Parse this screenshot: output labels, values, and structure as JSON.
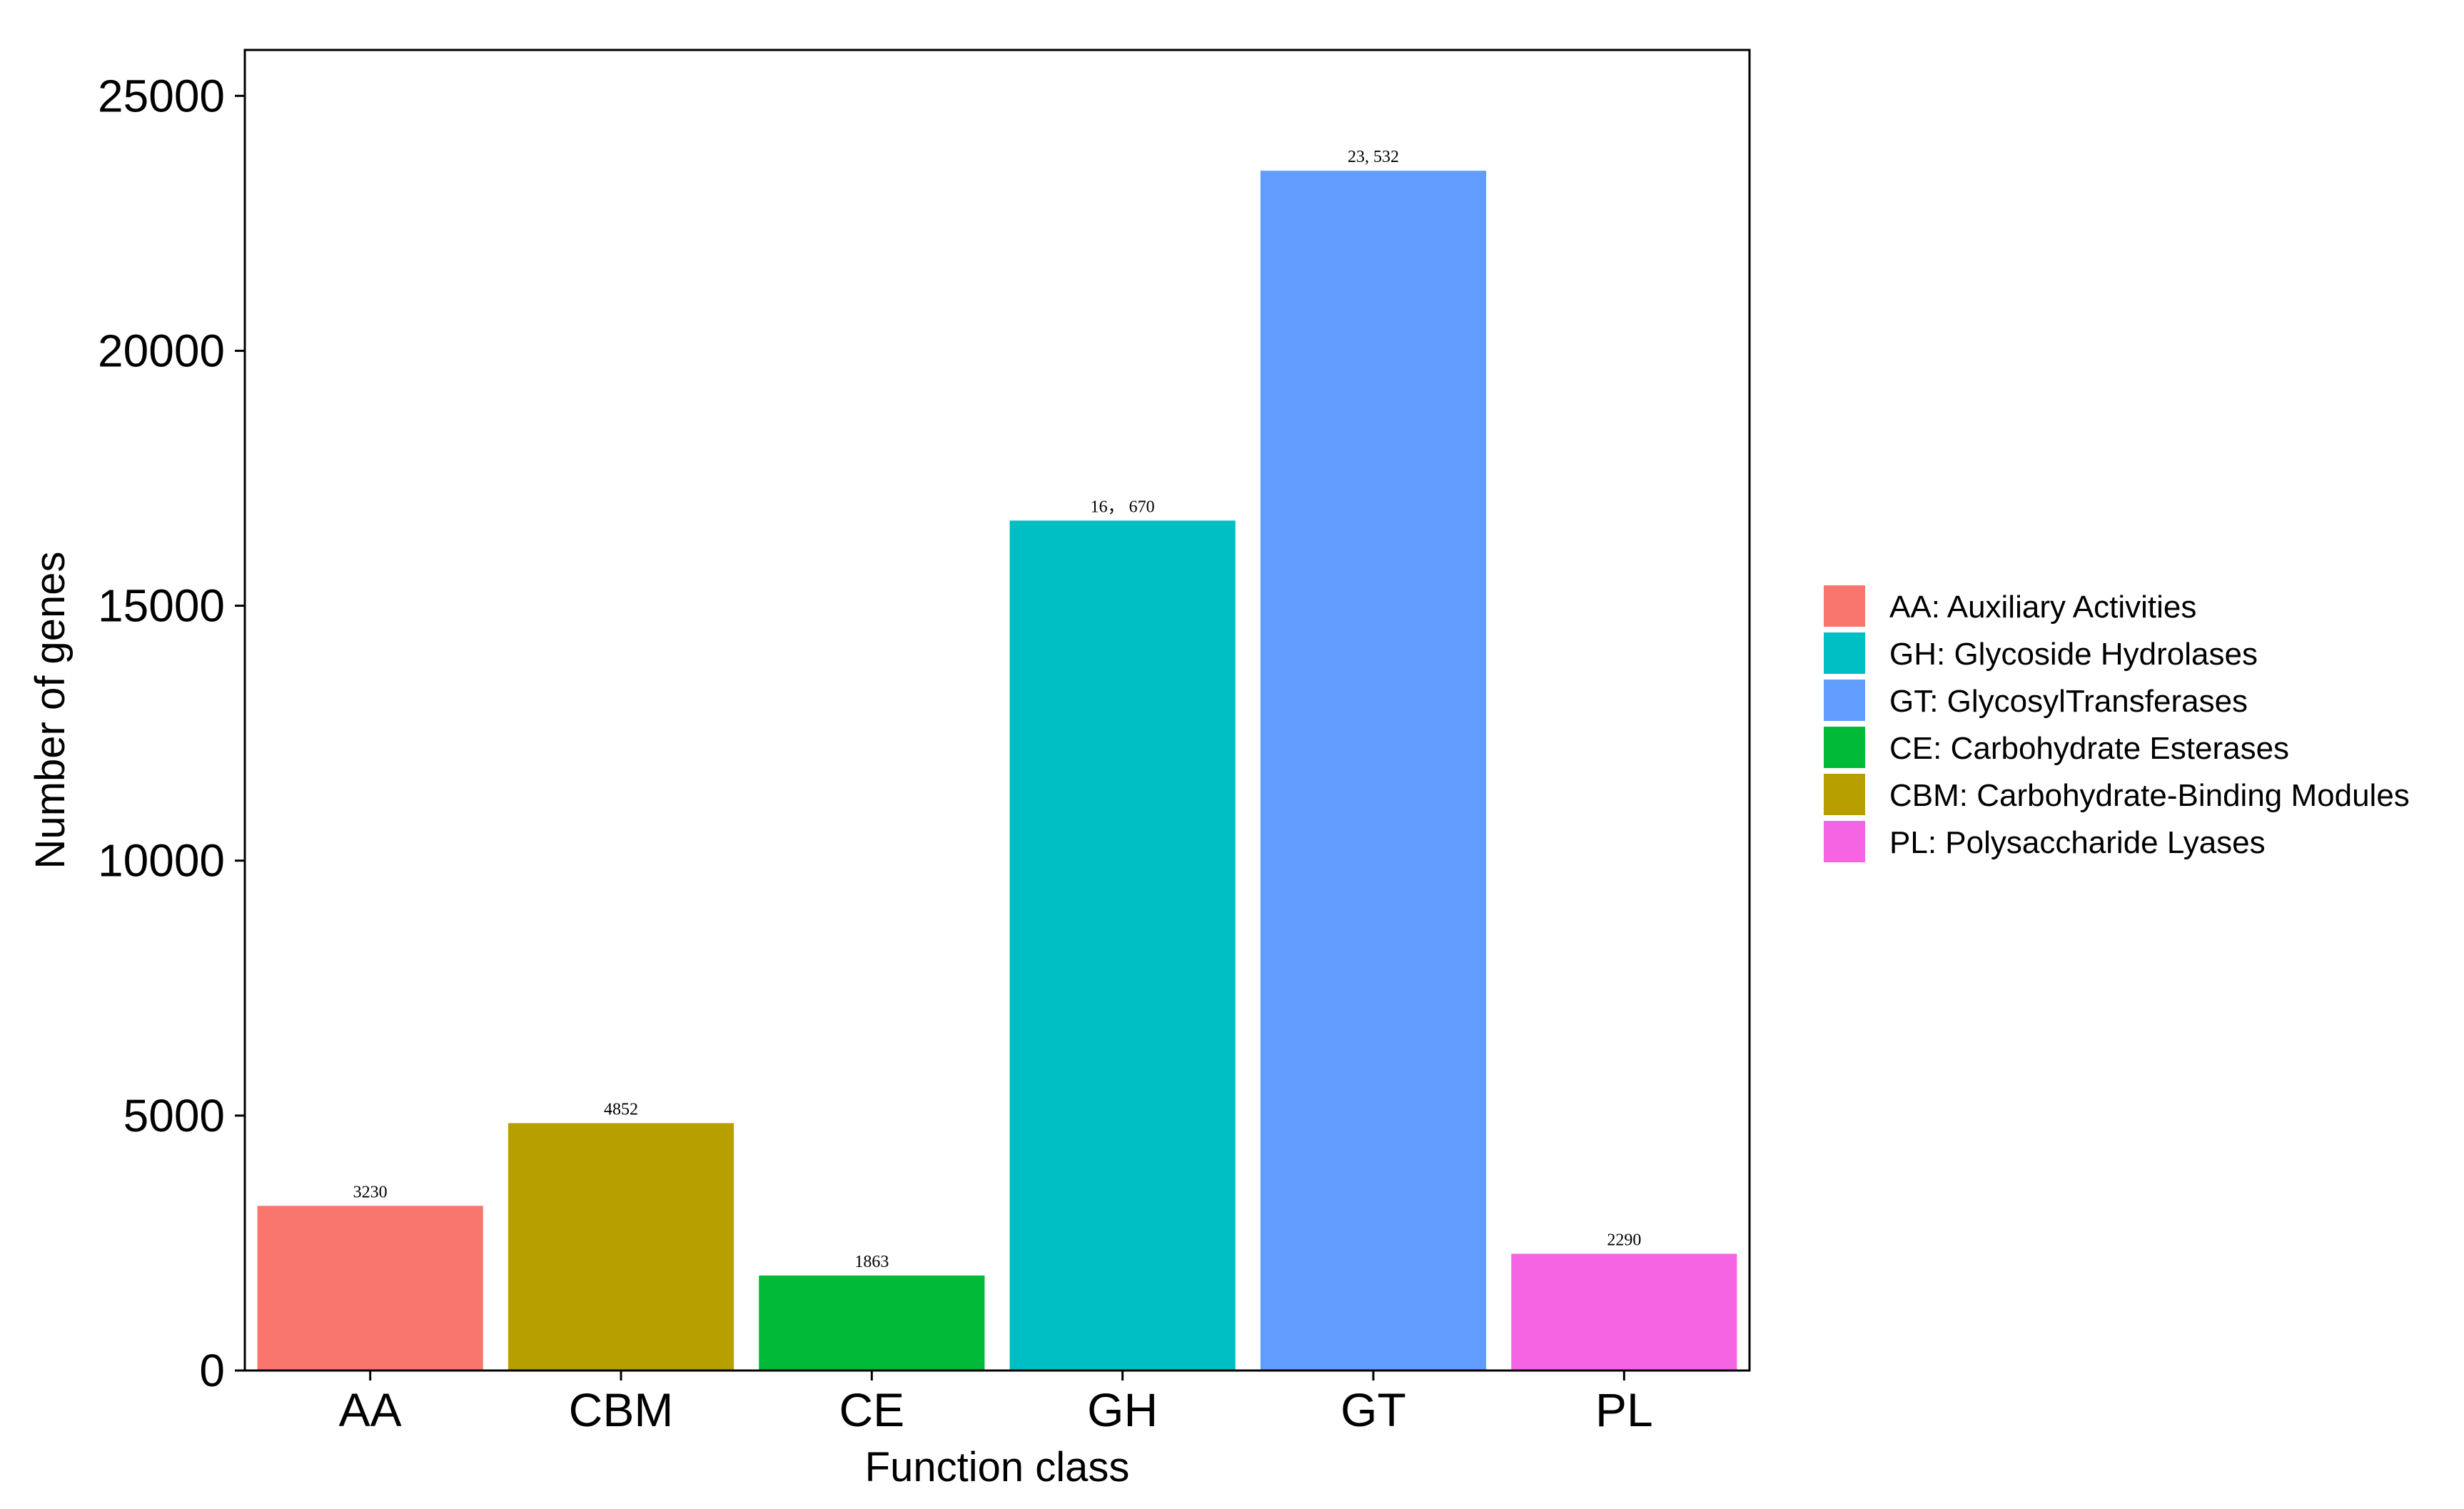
{
  "chart_data": {
    "type": "bar",
    "categories": [
      "AA",
      "CBM",
      "CE",
      "GH",
      "GT",
      "PL"
    ],
    "values": [
      3230,
      4852,
      1863,
      16670,
      23532,
      2290
    ],
    "data_labels": [
      "3230",
      "4852",
      "1863",
      "16， 670",
      "23, 532",
      "2290"
    ],
    "colors": [
      "#F8766D",
      "#B79F00",
      "#00BA38",
      "#00BFC4",
      "#619CFF",
      "#F564E3"
    ],
    "xlabel": "Function class",
    "ylabel": "Number of genes",
    "ylim": [
      0,
      25900
    ],
    "yticks": [
      0,
      5000,
      10000,
      15000,
      20000,
      25000
    ],
    "grid": false,
    "legend_position": "right",
    "legend": [
      {
        "label": "AA: Auxiliary Activities",
        "color": "#F8766D"
      },
      {
        "label": "GH: Glycoside Hydrolases",
        "color": "#00BFC4"
      },
      {
        "label": "GT: GlycosylTransferases",
        "color": "#619CFF"
      },
      {
        "label": "CE: Carbohydrate Esterases",
        "color": "#00BA38"
      },
      {
        "label": "CBM: Carbohydrate-Binding Modules",
        "color": "#B79F00"
      },
      {
        "label": "PL: Polysaccharide Lyases",
        "color": "#F564E3"
      }
    ]
  }
}
